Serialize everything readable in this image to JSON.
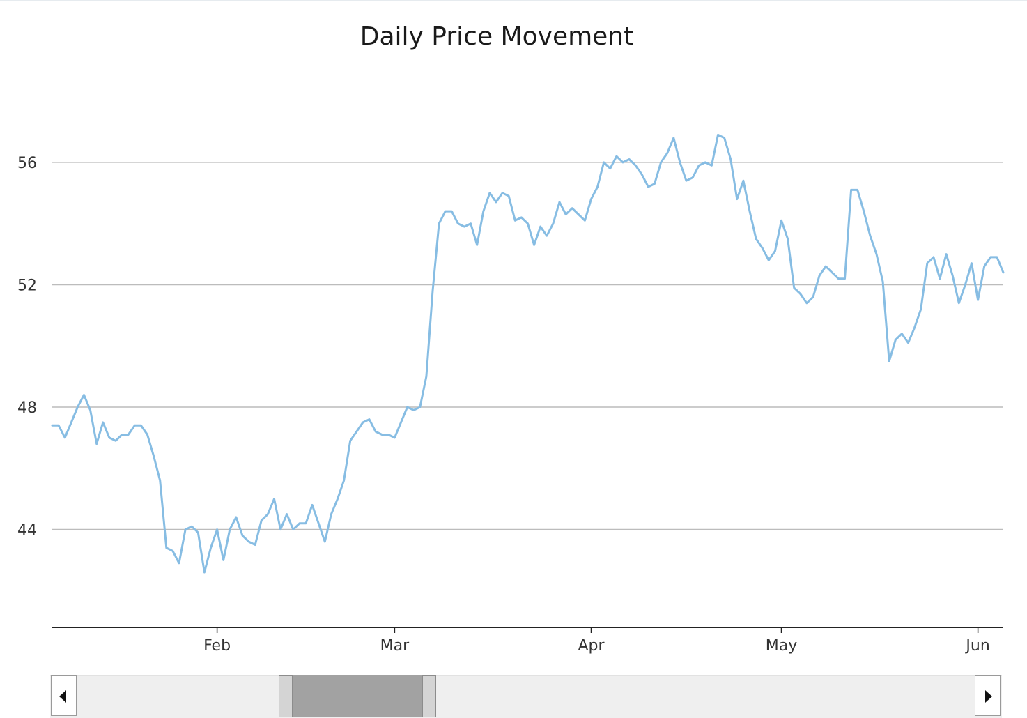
{
  "chart_data": {
    "type": "line",
    "title": "Daily Price Movement",
    "xlabel": "",
    "ylabel": "",
    "ylim": [
      40.8,
      58.8
    ],
    "xlim": [
      "2023-01-06",
      "2023-06-05"
    ],
    "y_ticks": [
      "44",
      "48",
      "52",
      "56"
    ],
    "x_ticks": [
      {
        "label": "Feb",
        "date": "2023-02-01"
      },
      {
        "label": "Mar",
        "date": "2023-03-01"
      },
      {
        "label": "Apr",
        "date": "2023-04-01"
      },
      {
        "label": "May",
        "date": "2023-05-01"
      },
      {
        "label": "Jun",
        "date": "2023-06-01"
      }
    ],
    "grid": "horizontal",
    "legend": "none",
    "series_color": "#87bde3",
    "series": [
      {
        "values": [
          [
            "2023-01-06",
            47.4
          ],
          [
            "2023-01-07",
            47.4
          ],
          [
            "2023-01-08",
            47.0
          ],
          [
            "2023-01-10",
            48.0
          ],
          [
            "2023-01-11",
            48.4
          ],
          [
            "2023-01-12",
            47.9
          ],
          [
            "2023-01-13",
            46.8
          ],
          [
            "2023-01-14",
            47.5
          ],
          [
            "2023-01-15",
            47.0
          ],
          [
            "2023-01-16",
            46.9
          ],
          [
            "2023-01-17",
            47.1
          ],
          [
            "2023-01-18",
            47.1
          ],
          [
            "2023-01-19",
            47.4
          ],
          [
            "2023-01-20",
            47.4
          ],
          [
            "2023-01-21",
            47.1
          ],
          [
            "2023-01-22",
            46.4
          ],
          [
            "2023-01-23",
            45.6
          ],
          [
            "2023-01-24",
            43.4
          ],
          [
            "2023-01-25",
            43.3
          ],
          [
            "2023-01-26",
            42.9
          ],
          [
            "2023-01-27",
            44.0
          ],
          [
            "2023-01-28",
            44.1
          ],
          [
            "2023-01-29",
            43.9
          ],
          [
            "2023-01-30",
            42.6
          ],
          [
            "2023-01-31",
            43.4
          ],
          [
            "2023-02-01",
            44.0
          ],
          [
            "2023-02-02",
            43.0
          ],
          [
            "2023-02-03",
            44.0
          ],
          [
            "2023-02-04",
            44.4
          ],
          [
            "2023-02-05",
            43.8
          ],
          [
            "2023-02-06",
            43.6
          ],
          [
            "2023-02-07",
            43.5
          ],
          [
            "2023-02-08",
            44.3
          ],
          [
            "2023-02-09",
            44.5
          ],
          [
            "2023-02-10",
            45.0
          ],
          [
            "2023-02-11",
            44.0
          ],
          [
            "2023-02-12",
            44.5
          ],
          [
            "2023-02-13",
            44.0
          ],
          [
            "2023-02-14",
            44.2
          ],
          [
            "2023-02-15",
            44.2
          ],
          [
            "2023-02-16",
            44.8
          ],
          [
            "2023-02-17",
            44.2
          ],
          [
            "2023-02-18",
            43.6
          ],
          [
            "2023-02-19",
            44.5
          ],
          [
            "2023-02-20",
            45.0
          ],
          [
            "2023-02-21",
            45.6
          ],
          [
            "2023-02-22",
            46.9
          ],
          [
            "2023-02-23",
            47.2
          ],
          [
            "2023-02-24",
            47.5
          ],
          [
            "2023-02-25",
            47.6
          ],
          [
            "2023-02-26",
            47.2
          ],
          [
            "2023-02-27",
            47.1
          ],
          [
            "2023-02-28",
            47.1
          ],
          [
            "2023-03-01",
            47.0
          ],
          [
            "2023-03-02",
            47.5
          ],
          [
            "2023-03-03",
            48.0
          ],
          [
            "2023-03-04",
            47.9
          ],
          [
            "2023-03-05",
            48.0
          ],
          [
            "2023-03-06",
            49.0
          ],
          [
            "2023-03-07",
            51.8
          ],
          [
            "2023-03-08",
            54.0
          ],
          [
            "2023-03-09",
            54.4
          ],
          [
            "2023-03-10",
            54.4
          ],
          [
            "2023-03-11",
            54.0
          ],
          [
            "2023-03-12",
            53.9
          ],
          [
            "2023-03-13",
            54.0
          ],
          [
            "2023-03-14",
            53.3
          ],
          [
            "2023-03-15",
            54.4
          ],
          [
            "2023-03-16",
            55.0
          ],
          [
            "2023-03-17",
            54.7
          ],
          [
            "2023-03-18",
            55.0
          ],
          [
            "2023-03-19",
            54.9
          ],
          [
            "2023-03-20",
            54.1
          ],
          [
            "2023-03-21",
            54.2
          ],
          [
            "2023-03-22",
            54.0
          ],
          [
            "2023-03-23",
            53.3
          ],
          [
            "2023-03-24",
            53.9
          ],
          [
            "2023-03-25",
            53.6
          ],
          [
            "2023-03-26",
            54.0
          ],
          [
            "2023-03-27",
            54.7
          ],
          [
            "2023-03-28",
            54.3
          ],
          [
            "2023-03-29",
            54.5
          ],
          [
            "2023-03-30",
            54.3
          ],
          [
            "2023-03-31",
            54.1
          ],
          [
            "2023-04-01",
            54.8
          ],
          [
            "2023-04-02",
            55.2
          ],
          [
            "2023-04-03",
            56.0
          ],
          [
            "2023-04-04",
            55.8
          ],
          [
            "2023-04-05",
            56.2
          ],
          [
            "2023-04-06",
            56.0
          ],
          [
            "2023-04-07",
            56.1
          ],
          [
            "2023-04-08",
            55.9
          ],
          [
            "2023-04-09",
            55.6
          ],
          [
            "2023-04-10",
            55.2
          ],
          [
            "2023-04-11",
            55.3
          ],
          [
            "2023-04-12",
            56.0
          ],
          [
            "2023-04-13",
            56.3
          ],
          [
            "2023-04-14",
            56.8
          ],
          [
            "2023-04-15",
            56.0
          ],
          [
            "2023-04-16",
            55.4
          ],
          [
            "2023-04-17",
            55.5
          ],
          [
            "2023-04-18",
            55.9
          ],
          [
            "2023-04-19",
            56.0
          ],
          [
            "2023-04-20",
            55.9
          ],
          [
            "2023-04-21",
            56.9
          ],
          [
            "2023-04-22",
            56.8
          ],
          [
            "2023-04-23",
            56.1
          ],
          [
            "2023-04-24",
            54.8
          ],
          [
            "2023-04-25",
            55.4
          ],
          [
            "2023-04-26",
            54.4
          ],
          [
            "2023-04-27",
            53.5
          ],
          [
            "2023-04-28",
            53.2
          ],
          [
            "2023-04-29",
            52.8
          ],
          [
            "2023-04-30",
            53.1
          ],
          [
            "2023-05-01",
            54.1
          ],
          [
            "2023-05-02",
            53.5
          ],
          [
            "2023-05-03",
            51.9
          ],
          [
            "2023-05-04",
            51.7
          ],
          [
            "2023-05-05",
            51.4
          ],
          [
            "2023-05-06",
            51.6
          ],
          [
            "2023-05-07",
            52.3
          ],
          [
            "2023-05-08",
            52.6
          ],
          [
            "2023-05-09",
            52.4
          ],
          [
            "2023-05-10",
            52.2
          ],
          [
            "2023-05-11",
            52.2
          ],
          [
            "2023-05-12",
            55.1
          ],
          [
            "2023-05-13",
            55.1
          ],
          [
            "2023-05-14",
            54.4
          ],
          [
            "2023-05-15",
            53.6
          ],
          [
            "2023-05-16",
            53.0
          ],
          [
            "2023-05-17",
            52.1
          ],
          [
            "2023-05-18",
            49.5
          ],
          [
            "2023-05-19",
            50.2
          ],
          [
            "2023-05-20",
            50.4
          ],
          [
            "2023-05-21",
            50.1
          ],
          [
            "2023-05-22",
            50.6
          ],
          [
            "2023-05-23",
            51.2
          ],
          [
            "2023-05-24",
            52.7
          ],
          [
            "2023-05-25",
            52.9
          ],
          [
            "2023-05-26",
            52.2
          ],
          [
            "2023-05-27",
            53.0
          ],
          [
            "2023-05-28",
            52.3
          ],
          [
            "2023-05-29",
            51.4
          ],
          [
            "2023-05-30",
            52.0
          ],
          [
            "2023-05-31",
            52.7
          ],
          [
            "2023-06-01",
            51.5
          ],
          [
            "2023-06-02",
            52.6
          ],
          [
            "2023-06-03",
            52.9
          ],
          [
            "2023-06-04",
            52.9
          ],
          [
            "2023-06-05",
            52.4
          ]
        ]
      }
    ]
  },
  "navigator": {
    "left_arrow_icon": "triangle-left-icon",
    "right_arrow_icon": "triangle-right-icon"
  }
}
